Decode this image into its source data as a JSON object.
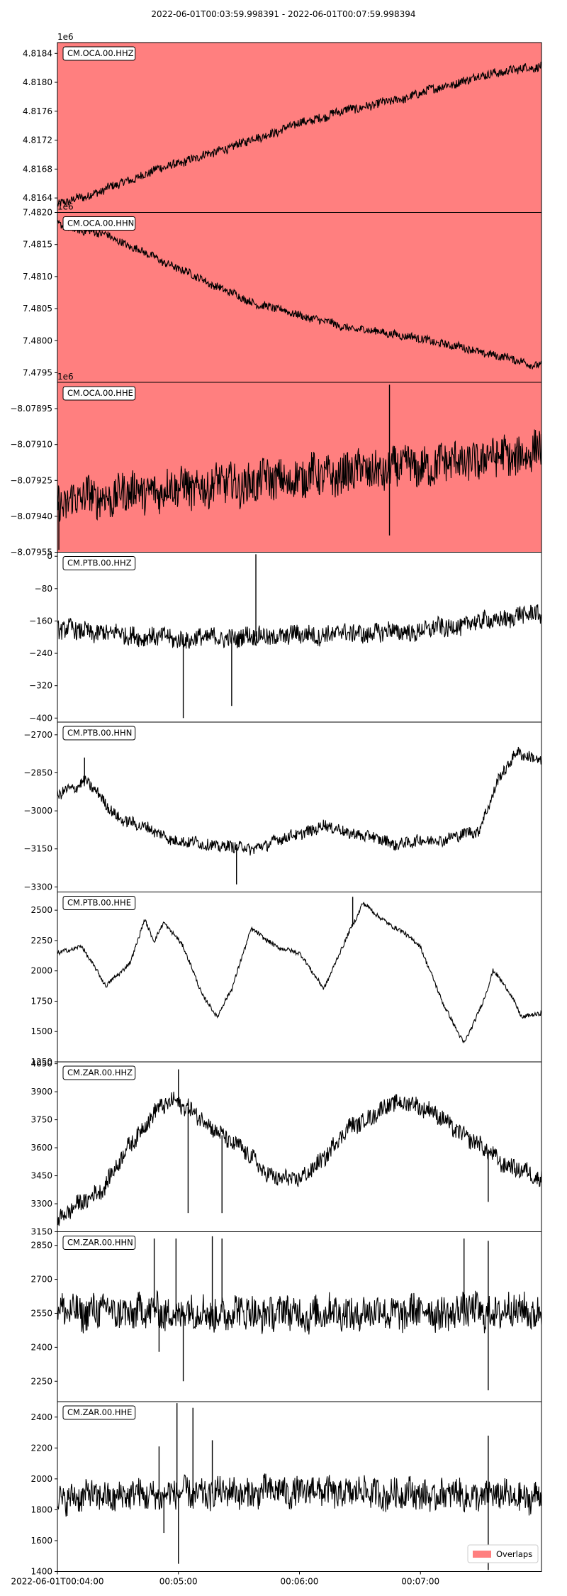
{
  "header": {
    "title": "2022-06-01T00:03:59.998391  -  2022-06-01T00:07:59.998394"
  },
  "legend": {
    "label": "Overlaps",
    "color": "#ff7f7f"
  },
  "colors": {
    "trace": "#000000",
    "overlap_fill": "#ff7f7f",
    "axes": "#000000"
  },
  "chart_data": {
    "type": "line",
    "x_ticks": [
      "2022-06-01T00:04:00",
      "00:05:00",
      "00:06:00",
      "00:07:00"
    ],
    "x_range": [
      "2022-06-01T00:03:59.998391",
      "2022-06-01T00:07:59.998394"
    ],
    "grid": false,
    "legend_position": "bottom-right",
    "panels": [
      {
        "label": "CM.OCA.00.HHZ",
        "offset_text": "1e6",
        "overlap": true,
        "ylim": [
          4.8162,
          4.81855
        ],
        "yticks": [
          "4.8164",
          "4.8168",
          "4.8172",
          "4.8176",
          "4.8180",
          "4.8184"
        ],
        "tickvals": [
          4.8164,
          4.8168,
          4.8172,
          4.8176,
          4.818,
          4.8184
        ],
        "trend": [
          [
            0,
            4.8163
          ],
          [
            0.1,
            4.81652
          ],
          [
            0.2,
            4.81678
          ],
          [
            0.3,
            4.81698
          ],
          [
            0.4,
            4.8172
          ],
          [
            0.5,
            4.81743
          ],
          [
            0.6,
            4.81762
          ],
          [
            0.7,
            4.81775
          ],
          [
            0.8,
            4.81795
          ],
          [
            0.9,
            4.81813
          ],
          [
            1,
            4.81822
          ]
        ],
        "noise": 0.00012,
        "detail": 4e-05,
        "spikes": []
      },
      {
        "label": "CM.OCA.00.HHN",
        "offset_text": "1e6",
        "overlap": true,
        "ylim": [
          7.47935,
          7.482
        ],
        "yticks": [
          "7.4795",
          "7.4800",
          "7.4805",
          "7.4810",
          "7.4815",
          "7.4820"
        ],
        "tickvals": [
          7.4795,
          7.48,
          7.4805,
          7.481,
          7.4815,
          7.482
        ],
        "trend": [
          [
            0,
            7.4818
          ],
          [
            0.1,
            7.48165
          ],
          [
            0.2,
            7.4813
          ],
          [
            0.3,
            7.48095
          ],
          [
            0.4,
            7.4806
          ],
          [
            0.5,
            7.4804
          ],
          [
            0.6,
            7.4802
          ],
          [
            0.7,
            7.4801
          ],
          [
            0.8,
            7.47995
          ],
          [
            0.9,
            7.47978
          ],
          [
            1,
            7.4796
          ]
        ],
        "noise": 0.00012,
        "detail": 4e-05,
        "spikes": []
      },
      {
        "label": "CM.OCA.00.HHE",
        "offset_text": "1e6",
        "overlap": true,
        "ylim": [
          -8.07955,
          -8.07884
        ],
        "yticks": [
          "−8.07955",
          "−8.07940",
          "−8.07925",
          "−8.07910",
          "−8.07895"
        ],
        "tickvals": [
          -8.07955,
          -8.0794,
          -8.07925,
          -8.0791,
          -8.07895
        ],
        "trend": [
          [
            0,
            -8.07934
          ],
          [
            0.2,
            -8.07929
          ],
          [
            0.4,
            -8.07926
          ],
          [
            0.6,
            -8.07922
          ],
          [
            0.8,
            -8.07918
          ],
          [
            1,
            -8.07913
          ]
        ],
        "noise": 0.00016,
        "detail": 5e-05,
        "spikes": [
          [
            0.686,
            -8.07885
          ],
          [
            0.686,
            -8.07948
          ],
          [
            0.003,
            -8.07954
          ]
        ]
      },
      {
        "label": "CM.PTB.00.HHZ",
        "offset_text": "",
        "overlap": false,
        "ylim": [
          -410,
          10
        ],
        "yticks": [
          "0",
          "−80",
          "−160",
          "−240",
          "−320",
          "−400"
        ],
        "tickvals": [
          0,
          -80,
          -160,
          -240,
          -320,
          -400
        ],
        "trend": [
          [
            0,
            -180
          ],
          [
            0.25,
            -205
          ],
          [
            0.5,
            -195
          ],
          [
            0.75,
            -185
          ],
          [
            1,
            -140
          ]
        ],
        "noise": 45,
        "detail": 14,
        "spikes": [
          [
            0.26,
            -400
          ],
          [
            0.41,
            5
          ],
          [
            0.36,
            -370
          ]
        ]
      },
      {
        "label": "CM.PTB.00.HHN",
        "offset_text": "",
        "overlap": false,
        "ylim": [
          -3320,
          -2650
        ],
        "yticks": [
          "−2700",
          "−2850",
          "−3000",
          "−3150",
          "−3300"
        ],
        "tickvals": [
          -2700,
          -2850,
          -3000,
          -3150,
          -3300
        ],
        "trend": [
          [
            0,
            -2940
          ],
          [
            0.06,
            -2880
          ],
          [
            0.12,
            -3020
          ],
          [
            0.25,
            -3120
          ],
          [
            0.4,
            -3150
          ],
          [
            0.55,
            -3060
          ],
          [
            0.7,
            -3130
          ],
          [
            0.8,
            -3110
          ],
          [
            0.87,
            -3080
          ],
          [
            0.91,
            -2880
          ],
          [
            0.95,
            -2770
          ],
          [
            1,
            -2800
          ]
        ],
        "noise": 45,
        "detail": 14,
        "spikes": [
          [
            0.056,
            -2790
          ],
          [
            0.37,
            -3290
          ]
        ]
      },
      {
        "label": "CM.PTB.00.HHE",
        "offset_text": "",
        "overlap": false,
        "ylim": [
          1250,
          2650
        ],
        "yticks": [
          "1250",
          "1500",
          "1750",
          "2000",
          "2250",
          "2500"
        ],
        "tickvals": [
          1250,
          1500,
          1750,
          2000,
          2250,
          2500
        ],
        "trend": [
          [
            0,
            2150
          ],
          [
            0.05,
            2200
          ],
          [
            0.1,
            1880
          ],
          [
            0.15,
            2060
          ],
          [
            0.2,
            2250
          ],
          [
            0.18,
            2420
          ],
          [
            0.22,
            2400
          ],
          [
            0.26,
            2200
          ],
          [
            0.3,
            1800
          ],
          [
            0.33,
            1620
          ],
          [
            0.36,
            1850
          ],
          [
            0.4,
            2350
          ],
          [
            0.45,
            2200
          ],
          [
            0.5,
            2150
          ],
          [
            0.55,
            1850
          ],
          [
            0.6,
            2300
          ],
          [
            0.62,
            2450
          ],
          [
            0.63,
            2560
          ],
          [
            0.68,
            2400
          ],
          [
            0.72,
            2300
          ],
          [
            0.75,
            2200
          ],
          [
            0.8,
            1700
          ],
          [
            0.84,
            1400
          ],
          [
            0.88,
            1750
          ],
          [
            0.9,
            2000
          ],
          [
            0.93,
            1850
          ],
          [
            0.96,
            1620
          ],
          [
            1,
            1650
          ]
        ],
        "noise": 35,
        "detail": 12,
        "spikes": [
          [
            0.61,
            2610
          ]
        ]
      },
      {
        "label": "CM.ZAR.00.HHZ",
        "offset_text": "",
        "overlap": false,
        "ylim": [
          3150,
          4060
        ],
        "yticks": [
          "3150",
          "3300",
          "3450",
          "3600",
          "3750",
          "3900",
          "4050"
        ],
        "tickvals": [
          3150,
          3300,
          3450,
          3600,
          3750,
          3900,
          4050
        ],
        "trend": [
          [
            0,
            3210
          ],
          [
            0.1,
            3400
          ],
          [
            0.15,
            3620
          ],
          [
            0.2,
            3790
          ],
          [
            0.24,
            3850
          ],
          [
            0.27,
            3820
          ],
          [
            0.32,
            3700
          ],
          [
            0.38,
            3600
          ],
          [
            0.43,
            3460
          ],
          [
            0.5,
            3420
          ],
          [
            0.55,
            3550
          ],
          [
            0.6,
            3700
          ],
          [
            0.68,
            3820
          ],
          [
            0.73,
            3850
          ],
          [
            0.78,
            3780
          ],
          [
            0.85,
            3650
          ],
          [
            0.92,
            3520
          ],
          [
            1,
            3430
          ]
        ],
        "noise": 90,
        "detail": 30,
        "spikes": [
          [
            0.25,
            4020
          ],
          [
            0.27,
            3250
          ],
          [
            0.34,
            3250
          ],
          [
            0.89,
            3310
          ]
        ]
      },
      {
        "label": "CM.ZAR.00.HHN",
        "offset_text": "",
        "overlap": false,
        "ylim": [
          2160,
          2910
        ],
        "yticks": [
          "2250",
          "2400",
          "2550",
          "2700",
          "2850"
        ],
        "tickvals": [
          2250,
          2400,
          2550,
          2700,
          2850
        ],
        "trend": [
          [
            0,
            2560
          ],
          [
            0.5,
            2550
          ],
          [
            1,
            2560
          ]
        ],
        "noise": 150,
        "detail": 45,
        "spikes": [
          [
            0.245,
            2880
          ],
          [
            0.26,
            2250
          ],
          [
            0.32,
            2890
          ],
          [
            0.34,
            2880
          ],
          [
            0.84,
            2880
          ],
          [
            0.89,
            2870
          ],
          [
            0.89,
            2210
          ],
          [
            0.2,
            2880
          ],
          [
            0.21,
            2380
          ]
        ]
      },
      {
        "label": "CM.ZAR.00.HHE",
        "offset_text": "",
        "overlap": false,
        "ylim": [
          1400,
          2500
        ],
        "yticks": [
          "1400",
          "1600",
          "1800",
          "2000",
          "2200",
          "2400"
        ],
        "tickvals": [
          1400,
          1600,
          1800,
          2000,
          2200,
          2400
        ],
        "trend": [
          [
            0,
            1880
          ],
          [
            0.5,
            1920
          ],
          [
            1,
            1880
          ]
        ],
        "noise": 190,
        "detail": 55,
        "spikes": [
          [
            0.247,
            2490
          ],
          [
            0.25,
            1450
          ],
          [
            0.28,
            2460
          ],
          [
            0.21,
            2210
          ],
          [
            0.22,
            1650
          ],
          [
            0.32,
            2250
          ],
          [
            0.89,
            2280
          ],
          [
            0.89,
            1410
          ]
        ]
      }
    ]
  }
}
